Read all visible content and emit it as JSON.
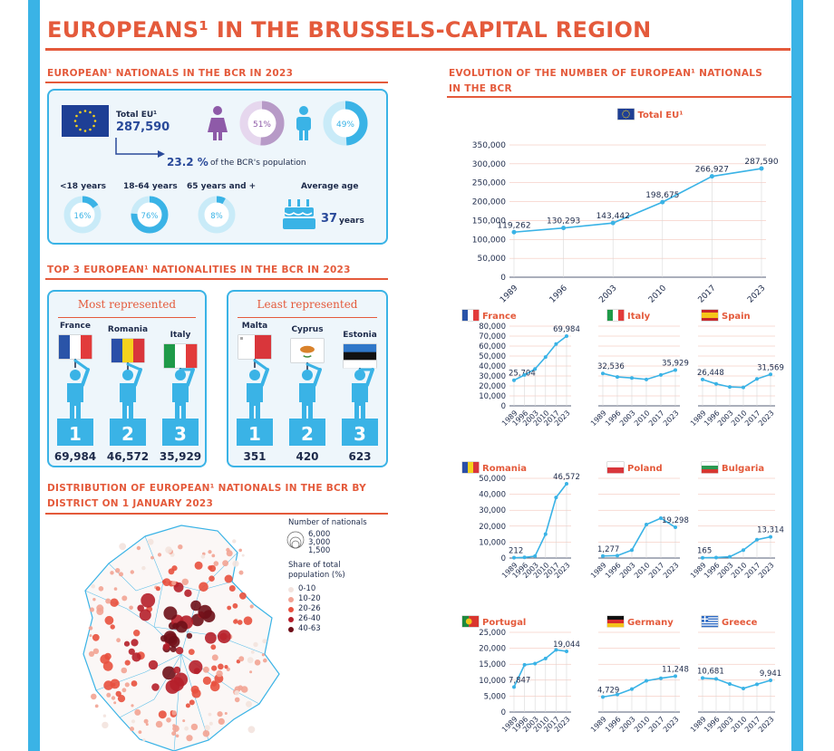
{
  "title": "EUROPEANS¹ IN THE BRUSSELS-CAPITAL REGION",
  "sections": {
    "nationals_2023": "EUROPEAN¹ NATIONALS IN THE BCR IN 2023",
    "top3": "TOP 3 EUROPEAN¹ NATIONALITIES IN THE BCR IN 2023",
    "distribution_line1": "DISTRIBUTION OF EUROPEAN¹ NATIONALS IN THE BCR BY",
    "distribution_line2": "DISTRICT ON 1 JANUARY 2023",
    "evolution_line1": "EVOLUTION OF THE NUMBER OF EUROPEAN¹ NATIONALS",
    "evolution_line2": "IN THE BCR"
  },
  "summary": {
    "total_label": "Total EU¹",
    "total_value": "287,590",
    "share_value": "23.2 %",
    "share_text": "of the BCR's population",
    "female_pct": "51%",
    "male_pct": "49%",
    "female_share": 0.51,
    "male_share": 0.49,
    "age_groups": [
      {
        "label": "<18 years",
        "pct": "16%",
        "share": 0.16
      },
      {
        "label": "18-64 years",
        "pct": "76%",
        "share": 0.76
      },
      {
        "label": "65 years and +",
        "pct": "8%",
        "share": 0.08
      }
    ],
    "avg_age_label": "Average age",
    "avg_age_value": "37",
    "avg_age_unit": "years"
  },
  "top3": {
    "most_title": "Most represented",
    "least_title": "Least represented",
    "most": [
      {
        "country": "France",
        "rank": "1",
        "value": "69,984",
        "flag": "france"
      },
      {
        "country": "Romania",
        "rank": "2",
        "value": "46,572",
        "flag": "romania"
      },
      {
        "country": "Italy",
        "rank": "3",
        "value": "35,929",
        "flag": "italy"
      }
    ],
    "least": [
      {
        "country": "Malta",
        "rank": "1",
        "value": "351",
        "flag": "malta"
      },
      {
        "country": "Cyprus",
        "rank": "2",
        "value": "420",
        "flag": "cyprus"
      },
      {
        "country": "Estonia",
        "rank": "3",
        "value": "623",
        "flag": "estonia"
      }
    ]
  },
  "map_legend": {
    "size_title": "Number of nationals",
    "sizes": [
      "6,000",
      "3,000",
      "1,500"
    ],
    "share_title_1": "Share of total",
    "share_title_2": "population (%)",
    "classes": [
      {
        "label": "0-10",
        "color": "#f3e3de"
      },
      {
        "label": "10-20",
        "color": "#f2a394"
      },
      {
        "label": "20-26",
        "color": "#e8503e"
      },
      {
        "label": "26-40",
        "color": "#b51f2a"
      },
      {
        "label": "40-63",
        "color": "#6e0f18"
      }
    ]
  },
  "colors": {
    "accent": "#e45a3b",
    "blue": "#3ab3e6",
    "navy": "#1d2a4a"
  },
  "chart_data": [
    {
      "type": "line",
      "title": "Total EU¹",
      "flag": "eu",
      "x": [
        "1989",
        "1996",
        "2003",
        "2010",
        "2017",
        "2023"
      ],
      "series": [
        {
          "values": [
            119262,
            130293,
            143442,
            198675,
            266927,
            287590
          ]
        }
      ],
      "labels": [
        "119,262",
        "130,293",
        "143,442",
        "198,675",
        "266,927",
        "287,590"
      ],
      "ylim": [
        0,
        350000
      ],
      "yticks": [
        "0",
        "50,000",
        "100,000",
        "150,000",
        "200,000",
        "250,000",
        "300,000",
        "350,000"
      ]
    },
    {
      "type": "line",
      "title": "France",
      "flag": "france",
      "x": [
        "1989",
        "1996",
        "2003",
        "2010",
        "2017",
        "2023"
      ],
      "series": [
        {
          "values": [
            25704,
            31000,
            37000,
            49000,
            62000,
            69984
          ]
        }
      ],
      "labels": [
        "25,704",
        "",
        "",
        "",
        "",
        "69,984"
      ],
      "ylim": [
        0,
        80000
      ],
      "yticks": [
        "0",
        "10,000",
        "20,000",
        "30,000",
        "40,000",
        "50,000",
        "60,000",
        "70,000",
        "80,000"
      ]
    },
    {
      "type": "line",
      "title": "Italy",
      "flag": "italy",
      "x": [
        "1989",
        "1996",
        "2003",
        "2010",
        "2017",
        "2023"
      ],
      "series": [
        {
          "values": [
            32536,
            29000,
            28000,
            26500,
            31000,
            35929
          ]
        }
      ],
      "labels": [
        "32,536",
        "",
        "",
        "",
        "",
        "35,929"
      ],
      "ylim": [
        0,
        80000
      ],
      "yticks": []
    },
    {
      "type": "line",
      "title": "Spain",
      "flag": "spain",
      "x": [
        "1989",
        "1996",
        "2003",
        "2010",
        "2017",
        "2023"
      ],
      "series": [
        {
          "values": [
            26448,
            22000,
            19000,
            18500,
            27000,
            31569
          ]
        }
      ],
      "labels": [
        "26,448",
        "",
        "",
        "",
        "",
        "31,569"
      ],
      "ylim": [
        0,
        80000
      ],
      "yticks": []
    },
    {
      "type": "line",
      "title": "Romania",
      "flag": "romania",
      "x": [
        "1989",
        "1996",
        "2003",
        "2010",
        "2017",
        "2023"
      ],
      "series": [
        {
          "values": [
            212,
            400,
            1200,
            15000,
            38000,
            46572
          ]
        }
      ],
      "labels": [
        "212",
        "",
        "",
        "",
        "",
        "46,572"
      ],
      "ylim": [
        0,
        50000
      ],
      "yticks": [
        "0",
        "10,000",
        "20,000",
        "30,000",
        "40,000",
        "50,000"
      ]
    },
    {
      "type": "line",
      "title": "Poland",
      "flag": "poland",
      "x": [
        "1989",
        "1996",
        "2003",
        "2010",
        "2017",
        "2023"
      ],
      "series": [
        {
          "values": [
            1277,
            1500,
            5000,
            21000,
            25000,
            19298
          ]
        }
      ],
      "labels": [
        "1,277",
        "",
        "",
        "",
        "",
        "19,298"
      ],
      "ylim": [
        0,
        50000
      ],
      "yticks": []
    },
    {
      "type": "line",
      "title": "Bulgaria",
      "flag": "bulgaria",
      "x": [
        "1989",
        "1996",
        "2003",
        "2010",
        "2017",
        "2023"
      ],
      "series": [
        {
          "values": [
            165,
            300,
            800,
            5000,
            11500,
            13314
          ]
        }
      ],
      "labels": [
        "165",
        "",
        "",
        "",
        "",
        "13,314"
      ],
      "ylim": [
        0,
        50000
      ],
      "yticks": []
    },
    {
      "type": "line",
      "title": "Portugal",
      "flag": "portugal",
      "x": [
        "1989",
        "1996",
        "2003",
        "2010",
        "2017",
        "2023"
      ],
      "series": [
        {
          "values": [
            7847,
            14800,
            15200,
            16800,
            19500,
            19044
          ]
        }
      ],
      "labels": [
        "7,847",
        "",
        "",
        "",
        "",
        "19,044"
      ],
      "ylim": [
        0,
        25000
      ],
      "yticks": [
        "0",
        "5,000",
        "10,000",
        "15,000",
        "20,000",
        "25,000"
      ]
    },
    {
      "type": "line",
      "title": "Germany",
      "flag": "germany",
      "x": [
        "1989",
        "1996",
        "2003",
        "2010",
        "2017",
        "2023"
      ],
      "series": [
        {
          "values": [
            4729,
            5500,
            7200,
            9800,
            10600,
            11248
          ]
        }
      ],
      "labels": [
        "4,729",
        "",
        "",
        "",
        "",
        "11,248"
      ],
      "ylim": [
        0,
        25000
      ],
      "yticks": []
    },
    {
      "type": "line",
      "title": "Greece",
      "flag": "greece",
      "x": [
        "1989",
        "1996",
        "2003",
        "2010",
        "2017",
        "2023"
      ],
      "series": [
        {
          "values": [
            10681,
            10400,
            8800,
            7400,
            8700,
            9941
          ]
        }
      ],
      "labels": [
        "10,681",
        "",
        "",
        "",
        "",
        "9,941"
      ],
      "ylim": [
        0,
        25000
      ],
      "yticks": []
    }
  ]
}
